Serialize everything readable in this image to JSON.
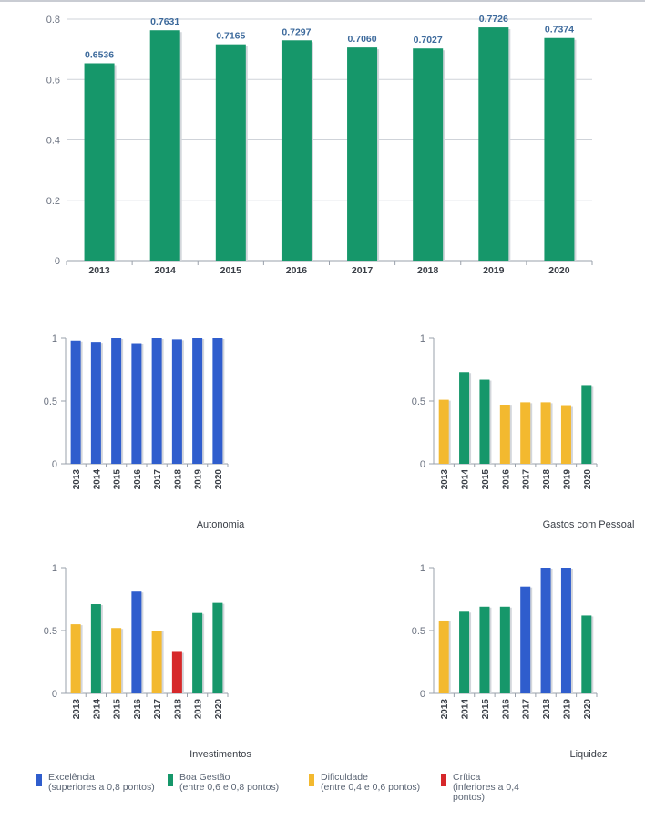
{
  "colors": {
    "excelencia": "#2f5dcd",
    "boa_gestao": "#16976a",
    "dificuldade": "#f3b92f",
    "critica": "#d6282a"
  },
  "chart_data": [
    {
      "type": "bar",
      "categories": [
        "2013",
        "2014",
        "2015",
        "2016",
        "2017",
        "2018",
        "2019",
        "2020"
      ],
      "values": [
        0.6536,
        0.7631,
        0.7165,
        0.7297,
        0.706,
        0.7027,
        0.7726,
        0.7374
      ],
      "data_labels": [
        "0.6536",
        "0.7631",
        "0.7165",
        "0.7297",
        "0.7060",
        "0.7027",
        "0.7726",
        "0.7374"
      ],
      "y_ticks": [
        "0",
        "0.2",
        "0.4",
        "0.6",
        "0.8"
      ],
      "ylim": [
        0,
        0.8
      ],
      "grid": true,
      "bar_color": "#16976a",
      "title": ""
    },
    {
      "type": "bar",
      "title": "Autonomia",
      "categories": [
        "2013",
        "2014",
        "2015",
        "2016",
        "2017",
        "2018",
        "2019",
        "2020"
      ],
      "values": [
        0.98,
        0.97,
        1.0,
        0.96,
        1.0,
        0.99,
        1.0,
        1.0
      ],
      "colors": [
        "excelencia",
        "excelencia",
        "excelencia",
        "excelencia",
        "excelencia",
        "excelencia",
        "excelencia",
        "excelencia"
      ],
      "y_ticks": [
        "0",
        "0.5",
        "1"
      ],
      "ylim": [
        0,
        1
      ]
    },
    {
      "type": "bar",
      "title": "Gastos com Pessoal",
      "categories": [
        "2013",
        "2014",
        "2015",
        "2016",
        "2017",
        "2018",
        "2019",
        "2020"
      ],
      "values": [
        0.51,
        0.73,
        0.67,
        0.47,
        0.49,
        0.49,
        0.46,
        0.62
      ],
      "colors": [
        "dificuldade",
        "boa_gestao",
        "boa_gestao",
        "dificuldade",
        "dificuldade",
        "dificuldade",
        "dificuldade",
        "boa_gestao"
      ],
      "y_ticks": [
        "0",
        "0.5",
        "1"
      ],
      "ylim": [
        0,
        1
      ]
    },
    {
      "type": "bar",
      "title": "Investimentos",
      "categories": [
        "2013",
        "2014",
        "2015",
        "2016",
        "2017",
        "2018",
        "2019",
        "2020"
      ],
      "values": [
        0.55,
        0.71,
        0.52,
        0.81,
        0.5,
        0.33,
        0.64,
        0.72
      ],
      "colors": [
        "dificuldade",
        "boa_gestao",
        "dificuldade",
        "excelencia",
        "dificuldade",
        "critica",
        "boa_gestao",
        "boa_gestao"
      ],
      "y_ticks": [
        "0",
        "0.5",
        "1"
      ],
      "ylim": [
        0,
        1
      ]
    },
    {
      "type": "bar",
      "title": "Liquidez",
      "categories": [
        "2013",
        "2014",
        "2015",
        "2016",
        "2017",
        "2018",
        "2019",
        "2020"
      ],
      "values": [
        0.58,
        0.65,
        0.69,
        0.69,
        0.85,
        1.0,
        1.0,
        0.62
      ],
      "colors": [
        "dificuldade",
        "boa_gestao",
        "boa_gestao",
        "boa_gestao",
        "excelencia",
        "excelencia",
        "excelencia",
        "boa_gestao"
      ],
      "y_ticks": [
        "0",
        "0.5",
        "1"
      ],
      "ylim": [
        0,
        1
      ]
    }
  ],
  "legend": [
    {
      "key": "excelencia",
      "title": "Excelência",
      "subtitle": "(superiores a 0,8 pontos)"
    },
    {
      "key": "boa_gestao",
      "title": "Boa Gestão",
      "subtitle": "(entre 0,6 e 0,8 pontos)"
    },
    {
      "key": "dificuldade",
      "title": "Dificuldade",
      "subtitle": "(entre 0,4 e 0,6 pontos)"
    },
    {
      "key": "critica",
      "title": "Crítica",
      "subtitle": "(inferiores a 0,4 pontos)"
    }
  ]
}
